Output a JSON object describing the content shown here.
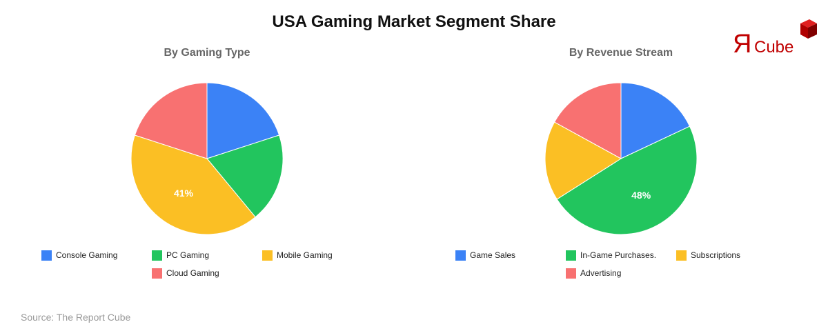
{
  "title": "USA Gaming Market Segment Share",
  "source": "Source: The Report Cube",
  "logo": {
    "glyph": "Я",
    "text": "Cube",
    "color": "#c00000"
  },
  "chart_data": [
    {
      "type": "pie",
      "title": "By Gaming Type",
      "categories": [
        "Console Gaming",
        "PC Gaming",
        "Mobile Gaming",
        "Cloud Gaming"
      ],
      "values": [
        20,
        19,
        41,
        20
      ],
      "colors": [
        "#3b82f6",
        "#22c55e",
        "#fbbf24",
        "#f87171"
      ],
      "data_labels": {
        "Mobile Gaming": "41%"
      },
      "legend_position": "bottom"
    },
    {
      "type": "pie",
      "title": "By Revenue Stream",
      "categories": [
        "Game Sales",
        "In-Game Purchases.",
        "Subscriptions",
        "Advertising"
      ],
      "values": [
        18,
        48,
        17,
        17
      ],
      "colors": [
        "#3b82f6",
        "#22c55e",
        "#fbbf24",
        "#f87171"
      ],
      "data_labels": {
        "In-Game Purchases.": "48%"
      },
      "legend_position": "bottom"
    }
  ]
}
